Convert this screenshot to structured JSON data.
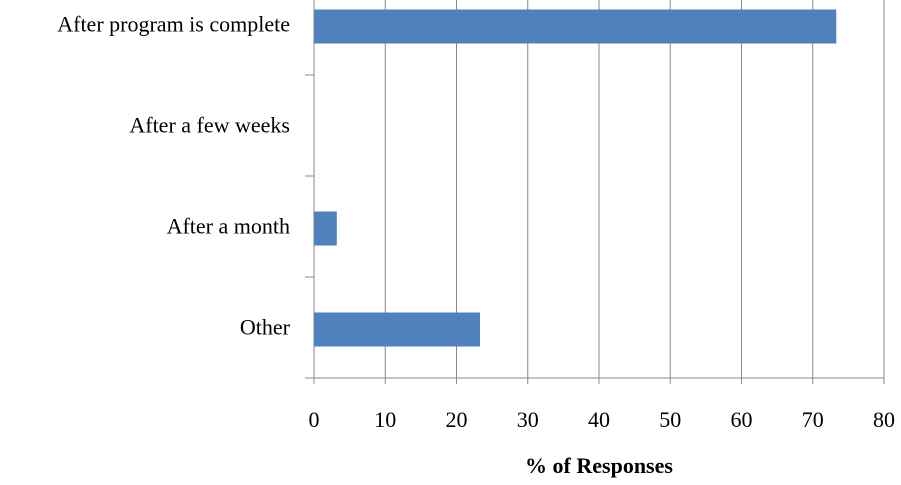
{
  "chart_data": {
    "type": "bar",
    "orientation": "horizontal",
    "categories": [
      "After program is complete",
      "After a few weeks",
      "After a month",
      "Other"
    ],
    "values": [
      73.3,
      0,
      3.2,
      23.3
    ],
    "color": "#4f81bd",
    "xlabel": "% of Responses",
    "xlim": [
      0,
      80
    ],
    "xticks": [
      0,
      10,
      20,
      30,
      40,
      50,
      60,
      70,
      80
    ],
    "grid": true
  }
}
